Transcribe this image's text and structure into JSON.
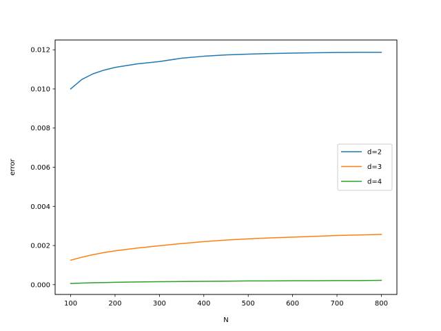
{
  "chart_data": {
    "type": "line",
    "title": "",
    "xlabel": "N",
    "ylabel": "error",
    "xlim": [
      65,
      835
    ],
    "ylim": [
      -0.0005,
      0.0125
    ],
    "xticks": [
      100,
      200,
      300,
      400,
      500,
      600,
      700,
      800
    ],
    "xtick_labels": [
      "100",
      "200",
      "300",
      "400",
      "500",
      "600",
      "700",
      "800"
    ],
    "yticks": [
      0.0,
      0.002,
      0.004,
      0.006,
      0.008,
      0.01,
      0.012
    ],
    "ytick_labels": [
      "0.000",
      "0.002",
      "0.004",
      "0.006",
      "0.008",
      "0.010",
      "0.012"
    ],
    "grid": false,
    "legend_position": "center right",
    "x": [
      100,
      125,
      150,
      175,
      200,
      250,
      300,
      350,
      400,
      450,
      500,
      550,
      600,
      650,
      700,
      750,
      800
    ],
    "series": [
      {
        "name": "d=2",
        "color": "#1f77b4",
        "values": [
          0.01,
          0.01048,
          0.01077,
          0.01096,
          0.0111,
          0.01128,
          0.0114,
          0.01157,
          0.01167,
          0.01174,
          0.01178,
          0.01181,
          0.01183,
          0.01185,
          0.01186,
          0.01187,
          0.01187
        ]
      },
      {
        "name": "d=3",
        "color": "#ff7f0e",
        "values": [
          0.00125,
          0.0014,
          0.00153,
          0.00164,
          0.00173,
          0.00187,
          0.00199,
          0.0021,
          0.0022,
          0.00228,
          0.00234,
          0.00239,
          0.00243,
          0.00247,
          0.00251,
          0.00254,
          0.00257
        ]
      },
      {
        "name": "d=4",
        "color": "#2ca02c",
        "values": [
          6e-05,
          8e-05,
          0.0001,
          0.00011,
          0.00012,
          0.00014,
          0.00015,
          0.00016,
          0.00017,
          0.00018,
          0.00019,
          0.00019,
          0.0002,
          0.0002,
          0.00021,
          0.00021,
          0.00022
        ]
      }
    ]
  }
}
